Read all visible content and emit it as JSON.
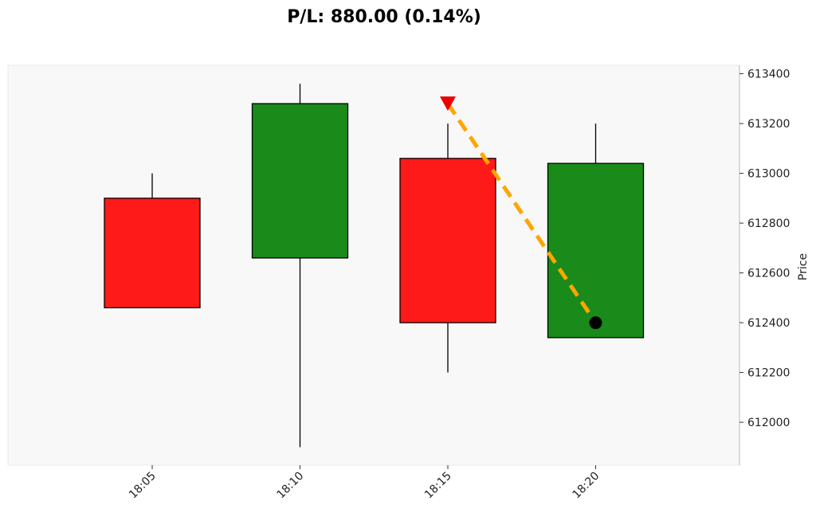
{
  "chart_data": {
    "type": "candlestick",
    "title": "P/L: 880.00 (0.14%)",
    "ylabel": "Price",
    "ylim": [
      611850,
      613450
    ],
    "yticks": [
      612000,
      612200,
      612400,
      612600,
      612800,
      613000,
      613200,
      613400
    ],
    "categories": [
      "18:05",
      "18:10",
      "18:15",
      "18:20"
    ],
    "candles": [
      {
        "time": "18:05",
        "open": 612900,
        "high": 613000,
        "low": 612460,
        "close": 612460
      },
      {
        "time": "18:10",
        "open": 612660,
        "high": 613360,
        "low": 611900,
        "close": 613280
      },
      {
        "time": "18:15",
        "open": 613060,
        "high": 613200,
        "low": 612200,
        "close": 612400
      },
      {
        "time": "18:20",
        "open": 612340,
        "high": 613200,
        "low": 612340,
        "close": 613040
      }
    ],
    "trade": {
      "entry": {
        "time": "18:15",
        "price": 613280,
        "marker": "sell-triangle-down"
      },
      "exit": {
        "time": "18:20",
        "price": 612400,
        "marker": "exit-circle"
      }
    },
    "colors": {
      "up": "#1a8a1a",
      "down": "#ff1a1a",
      "trade_line": "#ffa500",
      "entry_marker": "#ee0000",
      "exit_marker": "#000000",
      "plot_background": "#f8f8f8"
    },
    "grid": false,
    "legend": "none"
  }
}
